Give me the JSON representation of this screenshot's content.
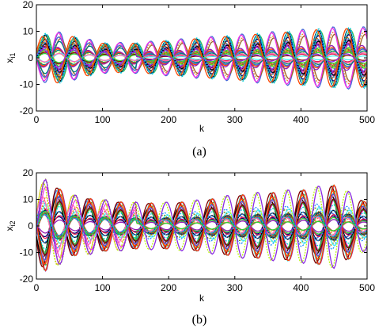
{
  "chart_data": [
    {
      "type": "line",
      "panel": "a",
      "caption": "(a)",
      "xlabel": "k",
      "ylabel_main": "x",
      "ylabel_sub": "i1",
      "xlim": [
        0,
        500
      ],
      "ylim": [
        -20,
        20
      ],
      "xticks": [
        "0",
        "100",
        "200",
        "300",
        "400",
        "500"
      ],
      "yticks": [
        "20",
        "10",
        "0",
        "-10",
        "-20"
      ],
      "period": 46,
      "series_count": 40,
      "envelope": {
        "k": [
          0,
          20,
          50,
          100,
          150,
          200,
          250,
          300,
          350,
          400,
          450,
          480,
          500
        ],
        "max": [
          7,
          11,
          9,
          6,
          6,
          7,
          8,
          9,
          10,
          11,
          12,
          12,
          12
        ]
      },
      "colors": [
        "#e6194b",
        "#3cb44b",
        "#4363d8",
        "#f58231",
        "#911eb4",
        "#46f0f0",
        "#f032e6",
        "#bcf60c",
        "#800000",
        "#008080",
        "#000075",
        "#808000",
        "#9a6324",
        "#000000",
        "#ff69b4",
        "#1e90ff",
        "#32cd32",
        "#ff4500",
        "#8a2be2",
        "#00ced1"
      ]
    },
    {
      "type": "line",
      "panel": "b",
      "caption": "(b)",
      "xlabel": "k",
      "ylabel_main": "x",
      "ylabel_sub": "i2",
      "xlim": [
        0,
        500
      ],
      "ylim": [
        -20,
        20
      ],
      "xticks": [
        "0",
        "100",
        "200",
        "300",
        "400",
        "500"
      ],
      "yticks": [
        "20",
        "10",
        "0",
        "-10",
        "-20"
      ],
      "period": 46,
      "series_count": 40,
      "envelope": {
        "k": [
          0,
          15,
          50,
          100,
          150,
          200,
          250,
          300,
          350,
          400,
          450,
          480,
          500
        ],
        "max": [
          14,
          18,
          12,
          10,
          9,
          9,
          10,
          12,
          13,
          14,
          16,
          12,
          9
        ]
      },
      "colors": [
        "#e6194b",
        "#3cb44b",
        "#4363d8",
        "#f58231",
        "#911eb4",
        "#46f0f0",
        "#f032e6",
        "#bcf60c",
        "#800000",
        "#008080",
        "#000075",
        "#808000",
        "#9a6324",
        "#000000",
        "#ff69b4",
        "#1e90ff",
        "#32cd32",
        "#ff4500",
        "#8a2be2",
        "#00ced1"
      ]
    }
  ]
}
